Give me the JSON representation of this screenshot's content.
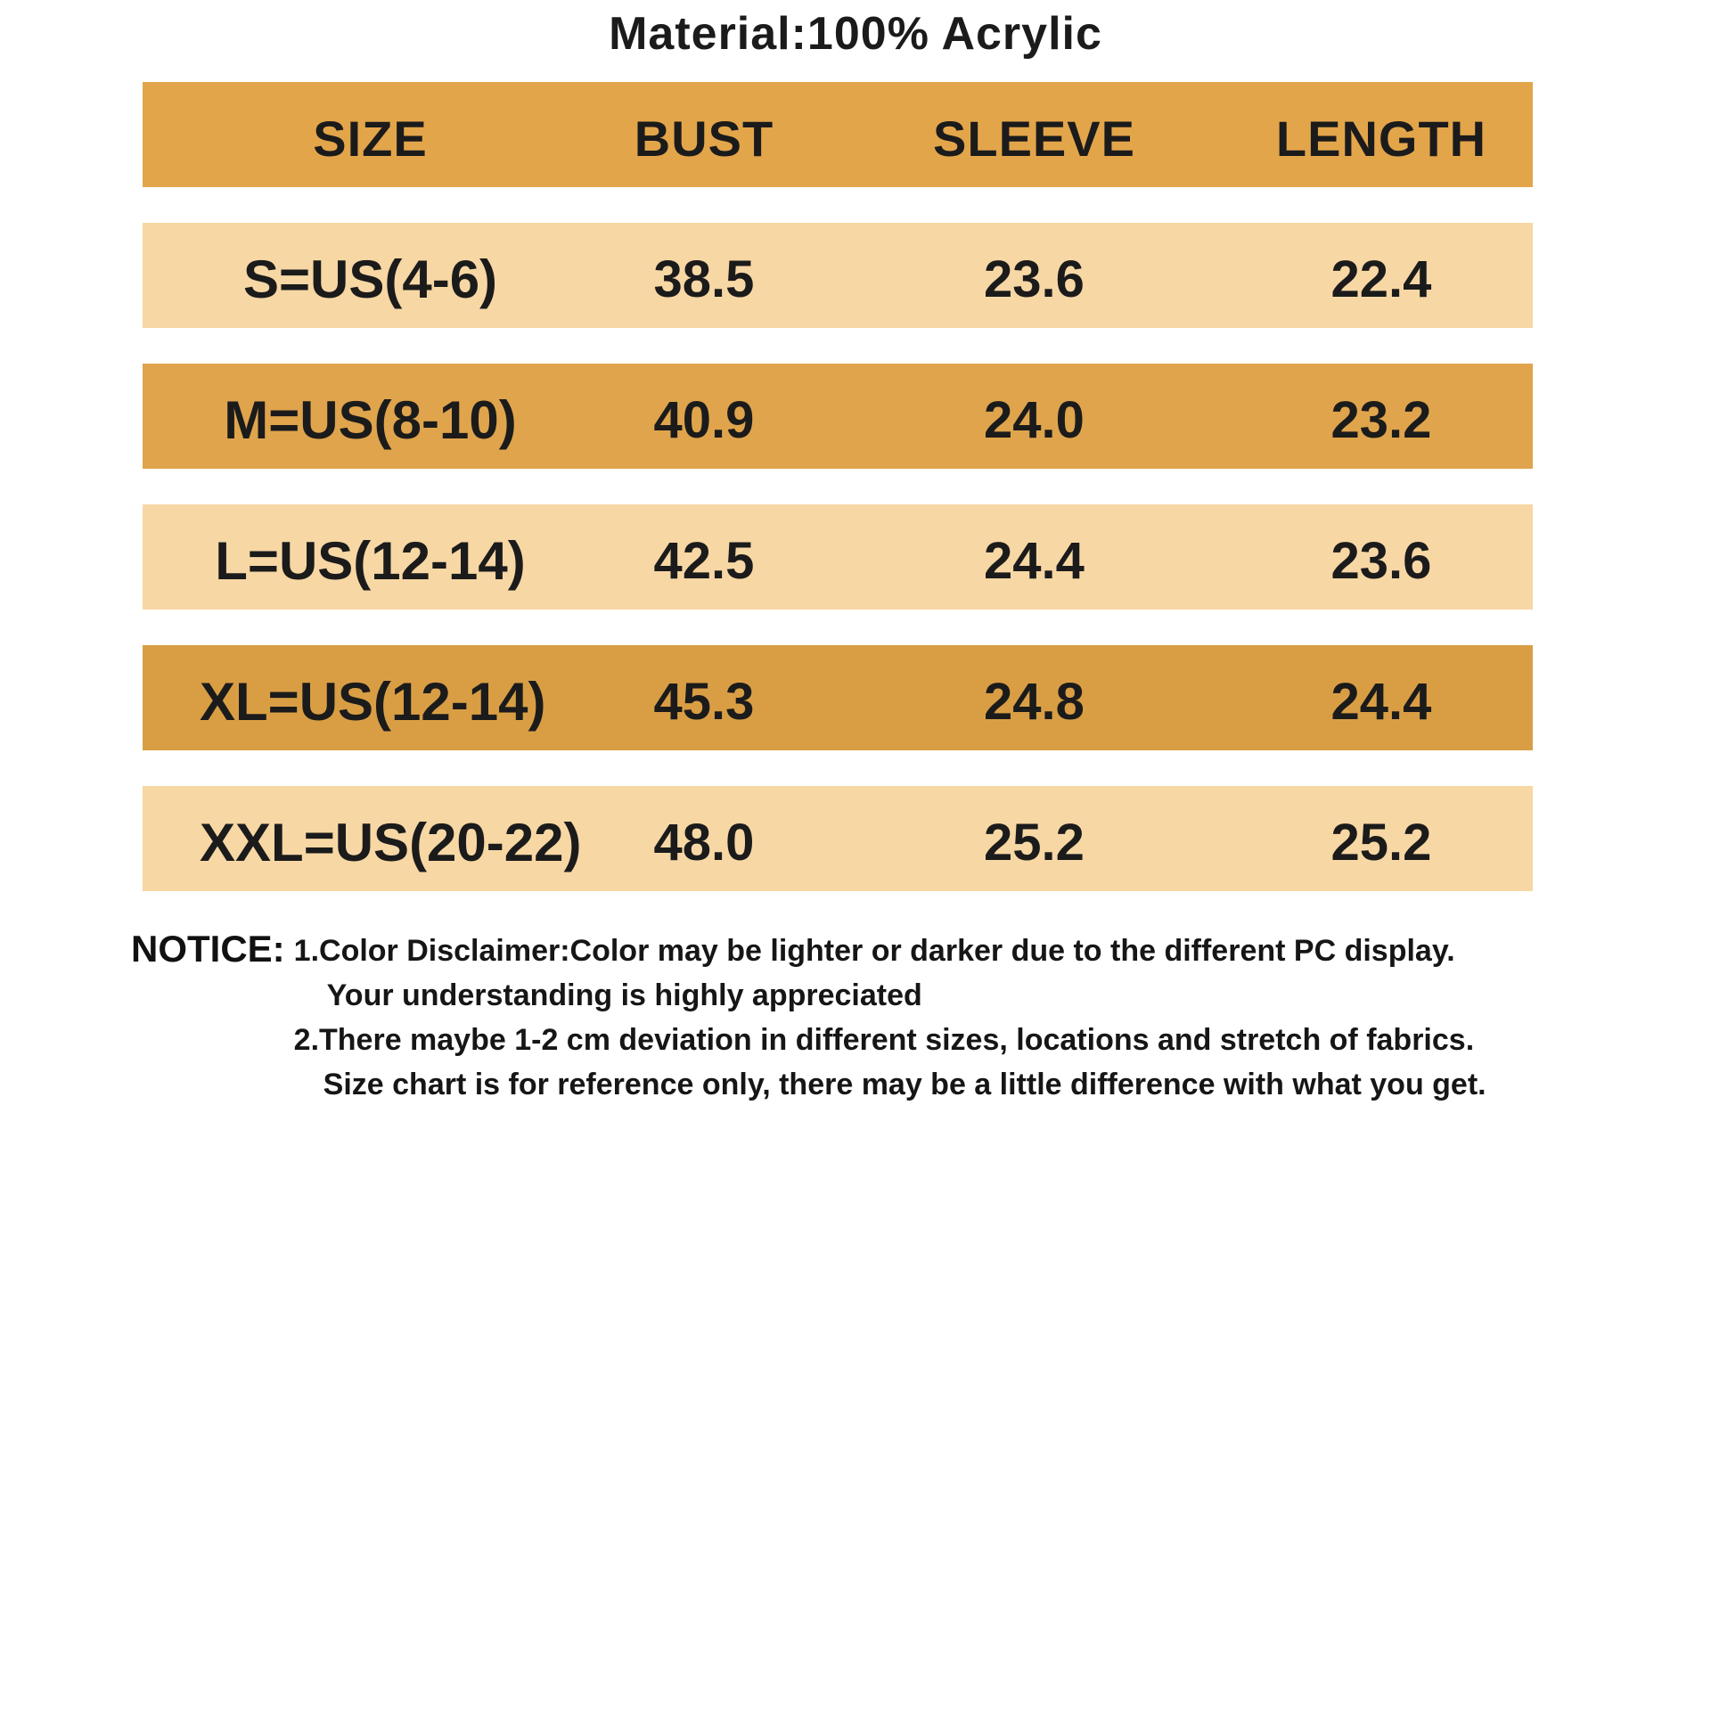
{
  "chart_data": {
    "type": "table",
    "title": "Material:100% Acrylic",
    "columns": [
      "SIZE",
      "BUST",
      "SLEEVE",
      "LENGTH"
    ],
    "rows": [
      [
        "S=US(4-6)",
        "38.5",
        "23.6",
        "22.4"
      ],
      [
        "M=US(8-10)",
        "40.9",
        "24.0",
        "23.2"
      ],
      [
        "L=US(12-14)",
        "42.5",
        "24.4",
        "23.6"
      ],
      [
        "XL=US(12-14)",
        "45.3",
        "24.8",
        "24.4"
      ],
      [
        "XXL=US(20-22)",
        "48.0",
        "25.2",
        "25.2"
      ]
    ],
    "units": "",
    "layout": "banded rows with white gaps, alternating light and gold bands"
  },
  "notice": {
    "label": "NOTICE:",
    "line1": "1.Color Disclaimer:Color may be lighter or darker due to the different PC display.",
    "line2": "Your understanding is highly appreciated",
    "line3": "2.There maybe 1-2 cm deviation in different sizes, locations and stretch of fabrics.",
    "line4": "Size chart is for reference only, there may be a little difference with what you get."
  },
  "colors": {
    "header-bg": "#E3A54A",
    "row-gold-bg": "#DFA44C",
    "row-gold-dark-bg": "#D99E44",
    "row-light-bg": "#F7D7A4",
    "text": "#161616"
  }
}
